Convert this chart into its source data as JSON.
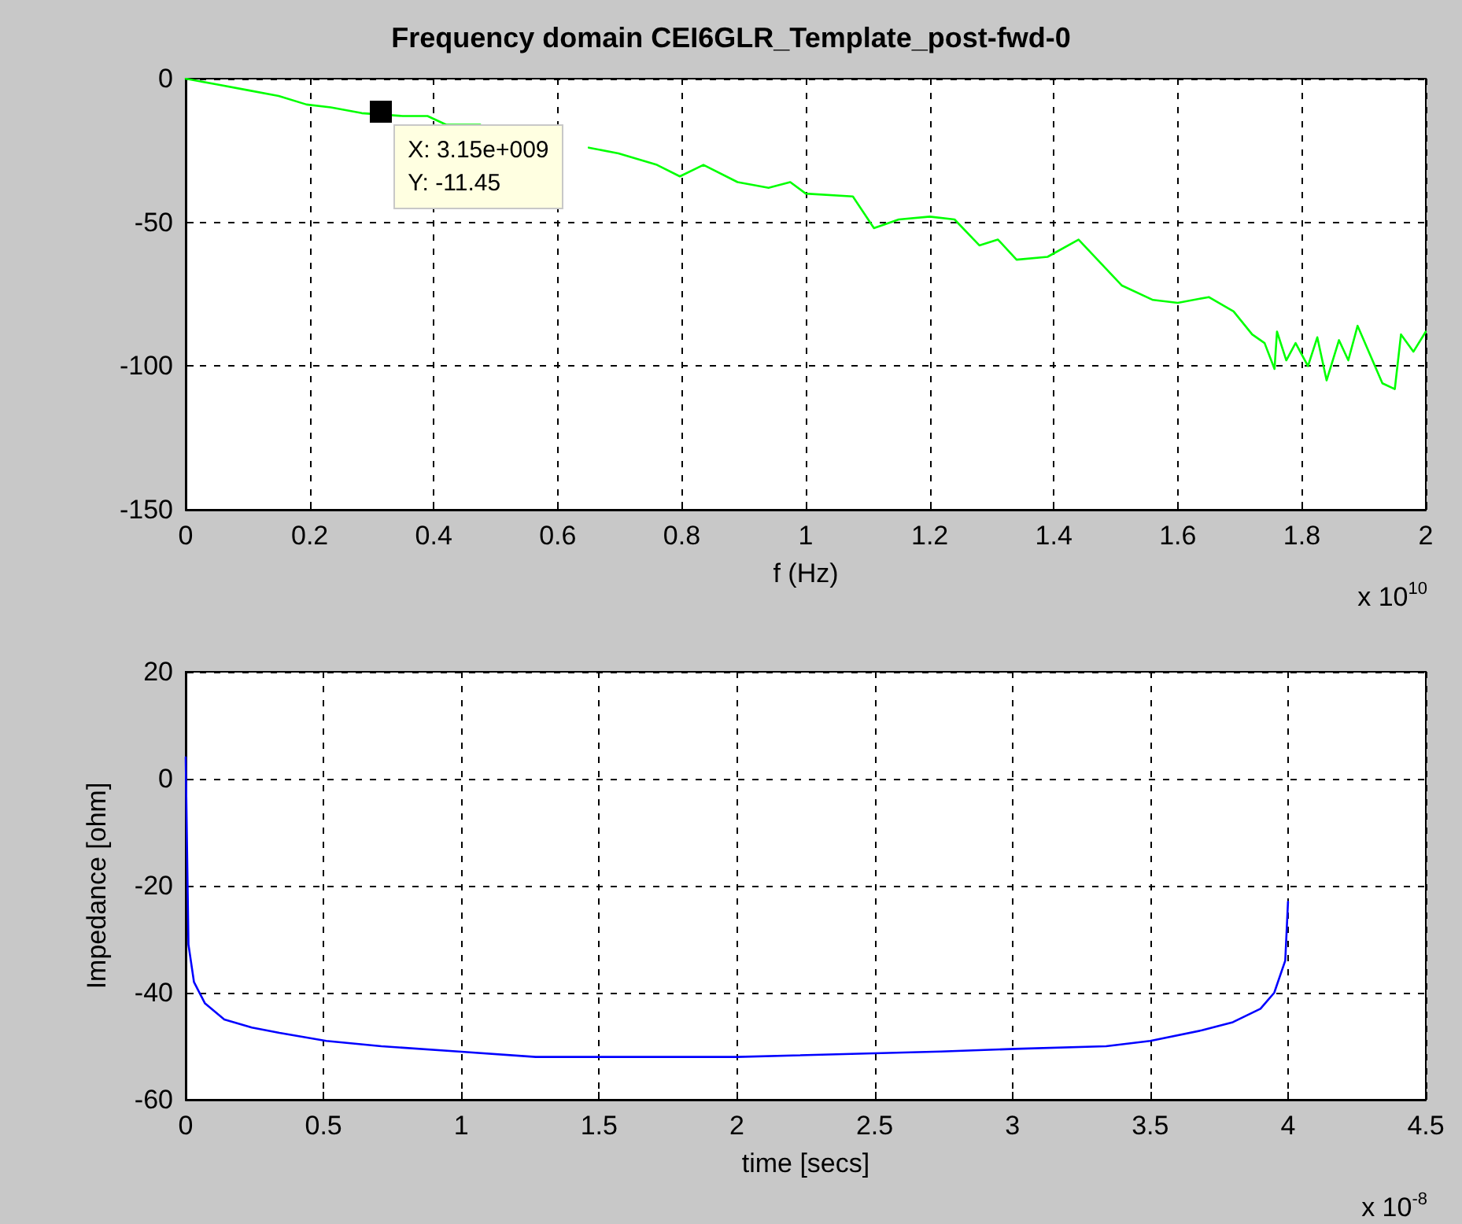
{
  "chart_data": [
    {
      "type": "line",
      "title": "Frequency domain CEI6GLR_Template_post-fwd-0",
      "xlabel": "f (Hz)",
      "grid": true,
      "marker": "none",
      "line_style": "solid",
      "xlim": [
        0,
        2
      ],
      "xticks": [
        0,
        0.2,
        0.4,
        0.6,
        0.8,
        1,
        1.2,
        1.4,
        1.6,
        1.8,
        2
      ],
      "ylim": [
        -150,
        0
      ],
      "yticks": [
        -150,
        -100,
        -50,
        0
      ],
      "annotations": [
        "x 10$^{10}$",
        {
          "text": "X: 3.15e+009\nY: -11.45",
          "x": 0.315,
          "y": -11.45
        }
      ],
      "series": [
        {
          "color": "#00ff00",
          "x": [
            0,
            0.05,
            0.1,
            0.15,
            0.195,
            0.234,
            0.284,
            0.35,
            0.39,
            0.42,
            0.475,
            0.53,
            0.59,
            0.65,
            0.698,
            0.76,
            0.797,
            0.835,
            0.89,
            0.94,
            0.975,
            1.0,
            1.076,
            1.11,
            1.15,
            1.2,
            1.24,
            1.28,
            1.31,
            1.34,
            1.39,
            1.44,
            1.51,
            1.56,
            1.6,
            1.65,
            1.69,
            1.72,
            1.74,
            1.756,
            1.76,
            1.775,
            1.79,
            1.81,
            1.825,
            1.84,
            1.86,
            1.875,
            1.89,
            1.91,
            1.93,
            1.95,
            1.96,
            1.98,
            2.0
          ],
          "values": [
            0,
            -2,
            -4,
            -6,
            -9,
            -10,
            -12,
            -13,
            -13,
            -16,
            -16,
            null,
            null,
            -24,
            -26,
            -30,
            -34,
            -30,
            -36,
            -38,
            -36,
            -40,
            -41,
            -52,
            -49,
            -48,
            -49,
            -58,
            -56,
            -63,
            -62,
            -56,
            -72,
            -77,
            -78,
            -76,
            -81,
            -89,
            -92,
            -101,
            -88,
            -98,
            -92,
            -100,
            -90,
            -105,
            -91,
            -98,
            -86,
            -96,
            -106,
            -108,
            -89,
            -95,
            -88
          ]
        }
      ]
    },
    {
      "type": "line",
      "ylabel": "Impedance [ohm]",
      "xlabel": "time [secs]",
      "grid": true,
      "marker": "none",
      "line_style": "solid",
      "xlim": [
        0,
        4.5
      ],
      "xticks": [
        0,
        0.5,
        1,
        1.5,
        2,
        2.5,
        3,
        3.5,
        4,
        4.5
      ],
      "ylim": [
        -60,
        20
      ],
      "yticks": [
        -60,
        -40,
        -20,
        0,
        20
      ],
      "annotations": [
        "x 10$^{-8}$"
      ],
      "series": [
        {
          "color": "#0000ff",
          "x": [
            0,
            0.01,
            0.03,
            0.07,
            0.14,
            0.24,
            0.34,
            0.51,
            0.71,
            0.99,
            1.27,
            2,
            2.74,
            3.01,
            3.34,
            3.5,
            3.69,
            3.8,
            3.9,
            3.95,
            3.99,
            4
          ],
          "values": [
            4,
            -31,
            -38,
            -42,
            -45,
            -46.5,
            -47.5,
            -49,
            -50,
            -51,
            -52,
            -52,
            -51,
            -50.5,
            -50,
            -49,
            -47,
            -45.5,
            -43,
            -40,
            -34,
            -23
          ]
        }
      ]
    }
  ]
}
